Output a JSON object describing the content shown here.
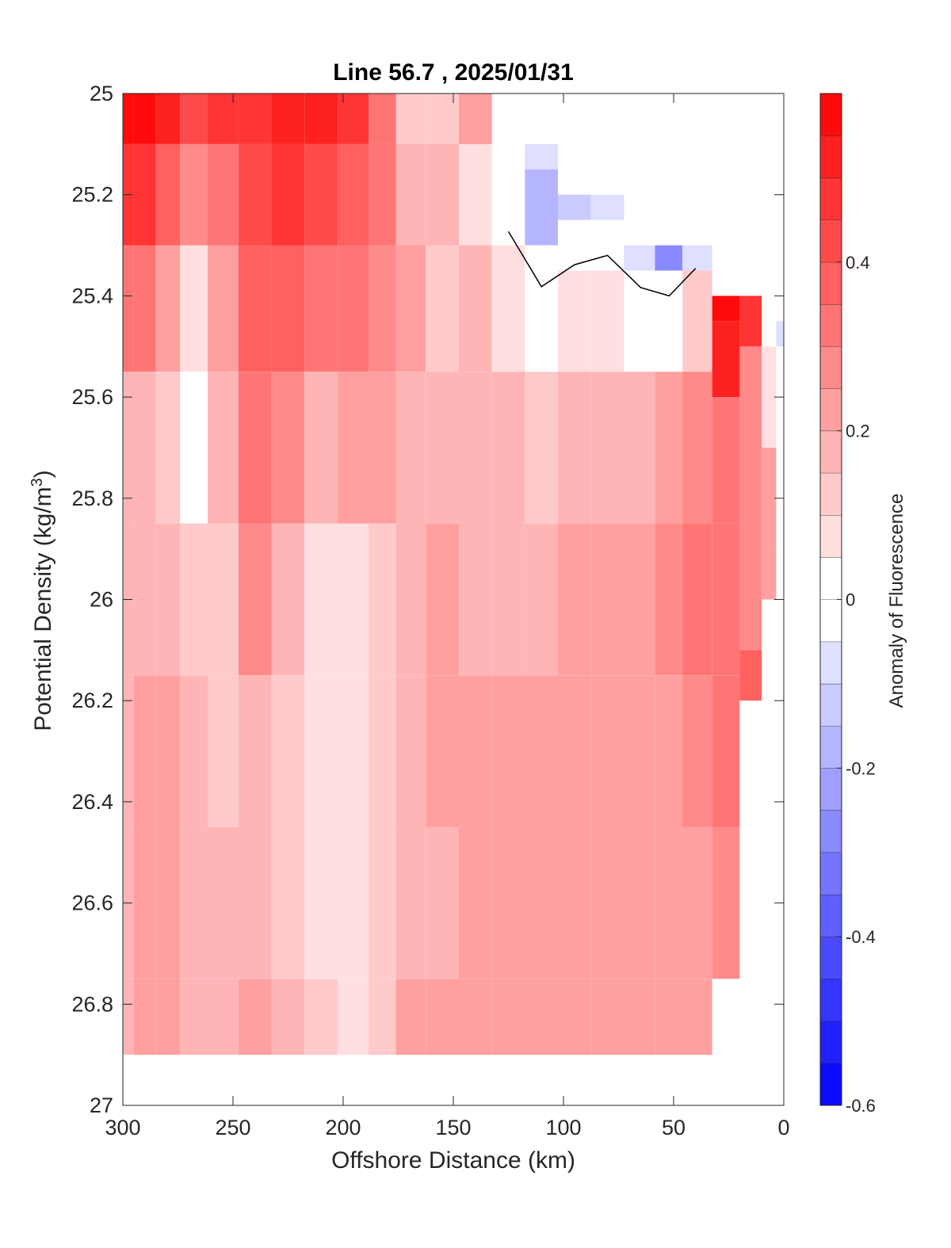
{
  "chart_data": {
    "type": "heatmap",
    "subtype": "filled-contour",
    "title": "Line 56.7 , 2025/01/31",
    "xlabel": "Offshore Distance (km)",
    "ylabel_main": "Potential Density (kg/m",
    "ylabel_sup": "3",
    "ylabel_close": ")",
    "xlim": [
      300,
      0
    ],
    "x_reversed": true,
    "ylim": [
      25,
      27
    ],
    "y_reversed": true,
    "x_ticks": [
      300,
      250,
      200,
      150,
      100,
      50,
      0
    ],
    "x_tick_labels": [
      "300",
      "250",
      "200",
      "150",
      "100",
      "50",
      "0"
    ],
    "y_ticks": [
      25,
      25.2,
      25.4,
      25.6,
      25.8,
      26,
      26.2,
      26.4,
      26.6,
      26.8,
      27
    ],
    "y_tick_labels": [
      "25",
      "25.2",
      "25.4",
      "25.6",
      "25.8",
      "26",
      "26.2",
      "26.4",
      "26.6",
      "26.8",
      "27"
    ],
    "grid": false,
    "colorbar": {
      "label": "Anomaly of Fluorescence",
      "range": [
        -0.6,
        0.6
      ],
      "levels": [
        -0.6,
        -0.55,
        -0.5,
        -0.45,
        -0.4,
        -0.35,
        -0.3,
        -0.25,
        -0.2,
        -0.15,
        -0.1,
        -0.05,
        0,
        0.05,
        0.1,
        0.15,
        0.2,
        0.25,
        0.3,
        0.35,
        0.4,
        0.45,
        0.5,
        0.55,
        0.6
      ],
      "ticks": [
        -0.6,
        -0.4,
        -0.2,
        0,
        0.2,
        0.4
      ],
      "tick_labels": [
        "-0.6",
        "-0.4",
        "-0.2",
        "0",
        "0.2",
        "0.4"
      ],
      "colormap": "blue-white-red",
      "min_color": "#0000ff",
      "mid_color": "#ffffff",
      "max_color": "#ff0000"
    },
    "zero_contour_color": "#000000",
    "column_profiles": [
      {
        "x": 300,
        "density": [
          25,
          25.2,
          25.4,
          25.7,
          26,
          26.3,
          26.6,
          26.9
        ],
        "anomaly": [
          0.55,
          0.45,
          0.32,
          0.18,
          0.15,
          0.17,
          0.17,
          0.17
        ]
      },
      {
        "x": 290,
        "density": [
          25,
          25.2,
          25.4,
          25.7,
          26,
          26.3,
          26.6,
          26.9
        ],
        "anomaly": [
          0.57,
          0.48,
          0.33,
          0.17,
          0.17,
          0.2,
          0.2,
          0.2
        ]
      },
      {
        "x": 280,
        "density": [
          25,
          25.2,
          25.4,
          25.7,
          26,
          26.3,
          26.6,
          26.9
        ],
        "anomaly": [
          0.5,
          0.38,
          0.22,
          0.12,
          0.17,
          0.2,
          0.2,
          0.2
        ]
      },
      {
        "x": 268,
        "density": [
          25,
          25.2,
          25.4,
          25.7,
          26,
          26.3,
          26.6,
          26.9
        ],
        "anomaly": [
          0.42,
          0.28,
          0.07,
          0.04,
          0.13,
          0.17,
          0.17,
          0.17
        ]
      },
      {
        "x": 255,
        "density": [
          25,
          25.2,
          25.4,
          25.7,
          26,
          26.3,
          26.6,
          26.9
        ],
        "anomaly": [
          0.45,
          0.33,
          0.22,
          0.17,
          0.13,
          0.12,
          0.17,
          0.17
        ]
      },
      {
        "x": 240,
        "density": [
          25,
          25.2,
          25.4,
          25.7,
          26,
          26.3,
          26.6,
          26.9
        ],
        "anomaly": [
          0.48,
          0.4,
          0.35,
          0.3,
          0.25,
          0.17,
          0.15,
          0.2
        ]
      },
      {
        "x": 225,
        "density": [
          25,
          25.2,
          25.4,
          25.7,
          26,
          26.3,
          26.6,
          26.9
        ],
        "anomaly": [
          0.5,
          0.45,
          0.35,
          0.27,
          0.17,
          0.13,
          0.13,
          0.17
        ]
      },
      {
        "x": 210,
        "density": [
          25,
          25.2,
          25.4,
          25.7,
          26,
          26.3,
          26.6,
          26.9
        ],
        "anomaly": [
          0.52,
          0.43,
          0.3,
          0.16,
          0.09,
          0.07,
          0.07,
          0.13
        ]
      },
      {
        "x": 195,
        "density": [
          25,
          25.2,
          25.4,
          25.7,
          26,
          26.3,
          26.6,
          26.9
        ],
        "anomaly": [
          0.48,
          0.38,
          0.3,
          0.2,
          0.07,
          0.07,
          0.07,
          0.07
        ]
      },
      {
        "x": 182,
        "density": [
          25,
          25.2,
          25.4,
          25.7,
          26,
          26.3,
          26.6,
          26.9
        ],
        "anomaly": [
          0.3,
          0.3,
          0.25,
          0.2,
          0.12,
          0.1,
          0.1,
          0.1
        ]
      },
      {
        "x": 170,
        "density": [
          25,
          25.2,
          25.4,
          25.7,
          26,
          26.3,
          26.6,
          26.9
        ],
        "anomaly": [
          0.12,
          0.15,
          0.2,
          0.17,
          0.17,
          0.15,
          0.17,
          0.2
        ]
      },
      {
        "x": 155,
        "density": [
          25,
          25.2,
          25.4,
          25.7,
          26,
          26.3,
          26.6,
          26.9
        ],
        "anomaly": [
          0.1,
          0.17,
          0.12,
          0.15,
          0.2,
          0.2,
          0.17,
          0.2
        ]
      },
      {
        "x": 140,
        "density": [
          25,
          25.2,
          25.4,
          25.7,
          26,
          26.3,
          26.6,
          26.9
        ],
        "anomaly": [
          0.2,
          0.08,
          0.17,
          0.17,
          0.17,
          0.2,
          0.2,
          0.2
        ]
      },
      {
        "x": 125,
        "density": [
          25,
          25.2,
          25.4,
          25.7,
          26,
          26.3,
          26.6,
          26.9
        ],
        "anomaly": [
          null,
          -0.04,
          0.07,
          0.17,
          0.17,
          0.2,
          0.2,
          0.2
        ]
      },
      {
        "x": 110,
        "density": [
          25.1,
          25.2,
          25.4,
          25.7,
          26,
          26.3,
          26.6,
          26.9
        ],
        "anomaly": [
          -0.1,
          -0.2,
          0.02,
          0.12,
          0.17,
          0.2,
          0.2,
          0.22
        ]
      },
      {
        "x": 95,
        "density": [
          25.2,
          25.3,
          25.4,
          25.7,
          26,
          26.3,
          26.6,
          26.9
        ],
        "anomaly": [
          -0.12,
          -0.05,
          0.08,
          0.17,
          0.2,
          0.2,
          0.2,
          0.24
        ]
      },
      {
        "x": 80,
        "density": [
          25.2,
          25.3,
          25.4,
          25.7,
          26,
          26.3,
          26.6,
          26.9
        ],
        "anomaly": [
          -0.07,
          -0.02,
          0.08,
          0.17,
          0.2,
          0.2,
          0.2,
          0.2
        ]
      },
      {
        "x": 65,
        "density": [
          25.3,
          25.4,
          25.7,
          26,
          26.3,
          26.6,
          26.9
        ],
        "anomaly": [
          -0.1,
          0.02,
          0.17,
          0.22,
          0.2,
          0.2,
          0.2
        ]
      },
      {
        "x": 52,
        "density": [
          25.3,
          25.4,
          25.7,
          26,
          26.3,
          26.6,
          26.9
        ],
        "anomaly": [
          -0.3,
          0.0,
          0.2,
          0.28,
          0.23,
          0.2,
          0.2
        ]
      },
      {
        "x": 40,
        "density": [
          25.3,
          25.4,
          25.7,
          26,
          26.3,
          26.6,
          26.9
        ],
        "anomaly": [
          -0.1,
          0.12,
          0.25,
          0.3,
          0.28,
          0.2,
          0.2
        ]
      },
      {
        "x": 25,
        "density": [
          25.4,
          25.5,
          25.7,
          26,
          26.3,
          26.6,
          26.9
        ],
        "anomaly": [
          0.55,
          0.5,
          0.3,
          0.3,
          0.32,
          0.25,
          null
        ]
      },
      {
        "x": 15,
        "density": [
          25.4,
          25.6,
          25.8,
          26,
          26.2
        ],
        "anomaly": [
          0.45,
          0.25,
          0.25,
          0.28,
          0.38
        ]
      },
      {
        "x": 5,
        "density": [
          25.4,
          25.6,
          25.8,
          26
        ],
        "anomaly": [
          -0.05,
          0.05,
          0.2,
          0.22
        ]
      },
      {
        "x": 2,
        "density": [
          25.45,
          25.55
        ],
        "anomaly": [
          -0.1,
          -0.05
        ]
      }
    ]
  }
}
